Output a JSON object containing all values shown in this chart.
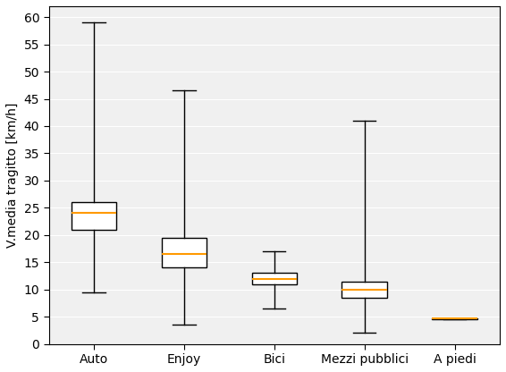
{
  "categories": [
    "Auto",
    "Enjoy",
    "Bici",
    "Mezzi pubblici",
    "A piedi"
  ],
  "boxes": [
    {
      "whislo": 9.5,
      "q1": 21.0,
      "med": 24.0,
      "q3": 26.0,
      "whishi": 59.0
    },
    {
      "whislo": 3.5,
      "q1": 14.0,
      "med": 16.5,
      "q3": 19.5,
      "whishi": 46.5
    },
    {
      "whislo": 6.5,
      "q1": 11.0,
      "med": 12.0,
      "q3": 13.0,
      "whishi": 17.0
    },
    {
      "whislo": 2.0,
      "q1": 8.5,
      "med": 10.0,
      "q3": 11.5,
      "whishi": 41.0
    },
    {
      "whislo": 4.55,
      "q1": 4.6,
      "med": 4.65,
      "q3": 4.7,
      "whishi": 4.75
    }
  ],
  "ylabel": "V.media tragitto [km/h]",
  "ylim": [
    0,
    62
  ],
  "yticks": [
    0,
    5,
    10,
    15,
    20,
    25,
    30,
    35,
    40,
    45,
    50,
    55,
    60
  ],
  "median_color": "#ff9900",
  "box_facecolor": "white",
  "box_edgecolor": "black",
  "whisker_color": "black",
  "cap_color": "black",
  "figsize": [
    5.66,
    4.16
  ],
  "dpi": 100,
  "facecolor": "#f0f0f0"
}
